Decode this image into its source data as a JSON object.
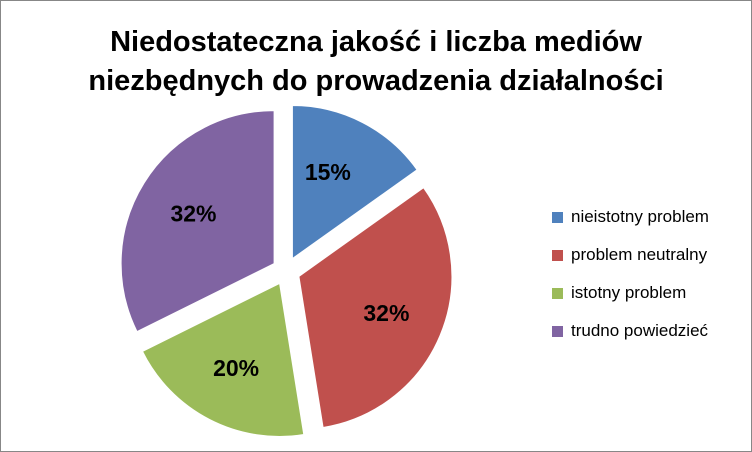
{
  "chart_data": {
    "type": "pie",
    "title_lines": [
      "Niedostateczna jakość i liczba mediów",
      "niezbędnych do prowadzenia działalności"
    ],
    "categories": [
      "nieistotny problem",
      "problem neutralny",
      "istotny problem",
      "trudno powiedzieć"
    ],
    "values": [
      15,
      32,
      20,
      32
    ],
    "labels": [
      "15%",
      "32%",
      "20%",
      "32%"
    ],
    "colors": [
      "#4F81BD",
      "#C0504D",
      "#9BBB59",
      "#8064A2"
    ],
    "exploded": true,
    "legend_position": "right"
  }
}
